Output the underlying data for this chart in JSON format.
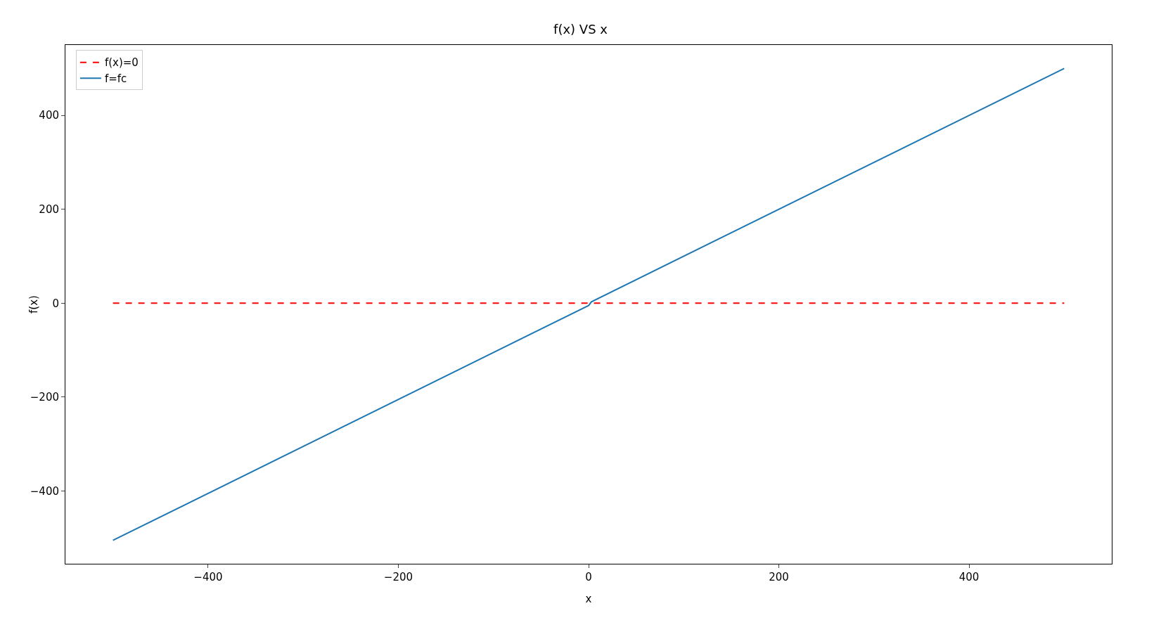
{
  "chart_data": {
    "type": "line",
    "title": "f(x) VS x",
    "xlabel": "x",
    "ylabel": "f(x)",
    "series": [
      {
        "name": "f(x)=0",
        "color": "#ff0000",
        "line_style": "dashed",
        "x": [
          -500,
          500
        ],
        "values": [
          0,
          0
        ]
      },
      {
        "name": "f=fc",
        "color": "#1f77b4",
        "line_style": "solid",
        "x": [
          -500,
          0,
          3,
          500
        ],
        "values": [
          -505,
          -5,
          3,
          500
        ]
      }
    ],
    "xlim": [
      -550,
      550
    ],
    "xticks": [
      {
        "value": -400,
        "label": "−400"
      },
      {
        "value": -200,
        "label": "−200"
      },
      0,
      200,
      400
    ],
    "ylim": [
      -555,
      550
    ],
    "yticks": [
      {
        "value": -400,
        "label": "−400"
      },
      {
        "value": -200,
        "label": "−200"
      },
      0,
      200,
      400
    ],
    "grid": false,
    "legend": "top left",
    "marker": "none"
  }
}
